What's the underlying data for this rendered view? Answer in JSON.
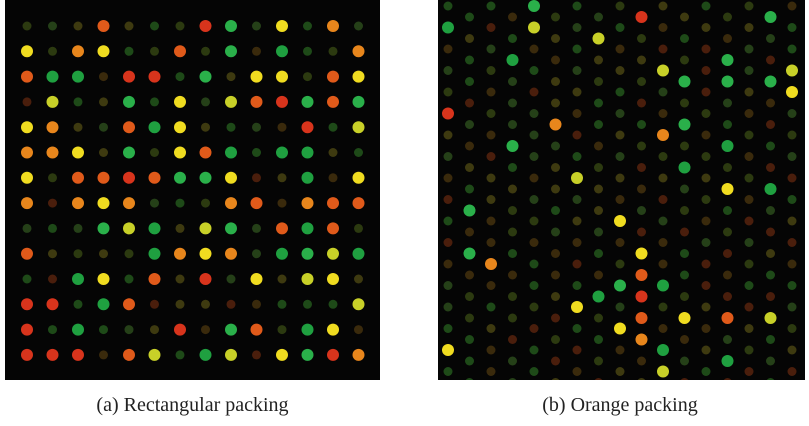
{
  "figure": {
    "panels": [
      {
        "caption": "(a) Rectangular packing"
      },
      {
        "caption": "(b) Orange packing"
      }
    ]
  }
}
